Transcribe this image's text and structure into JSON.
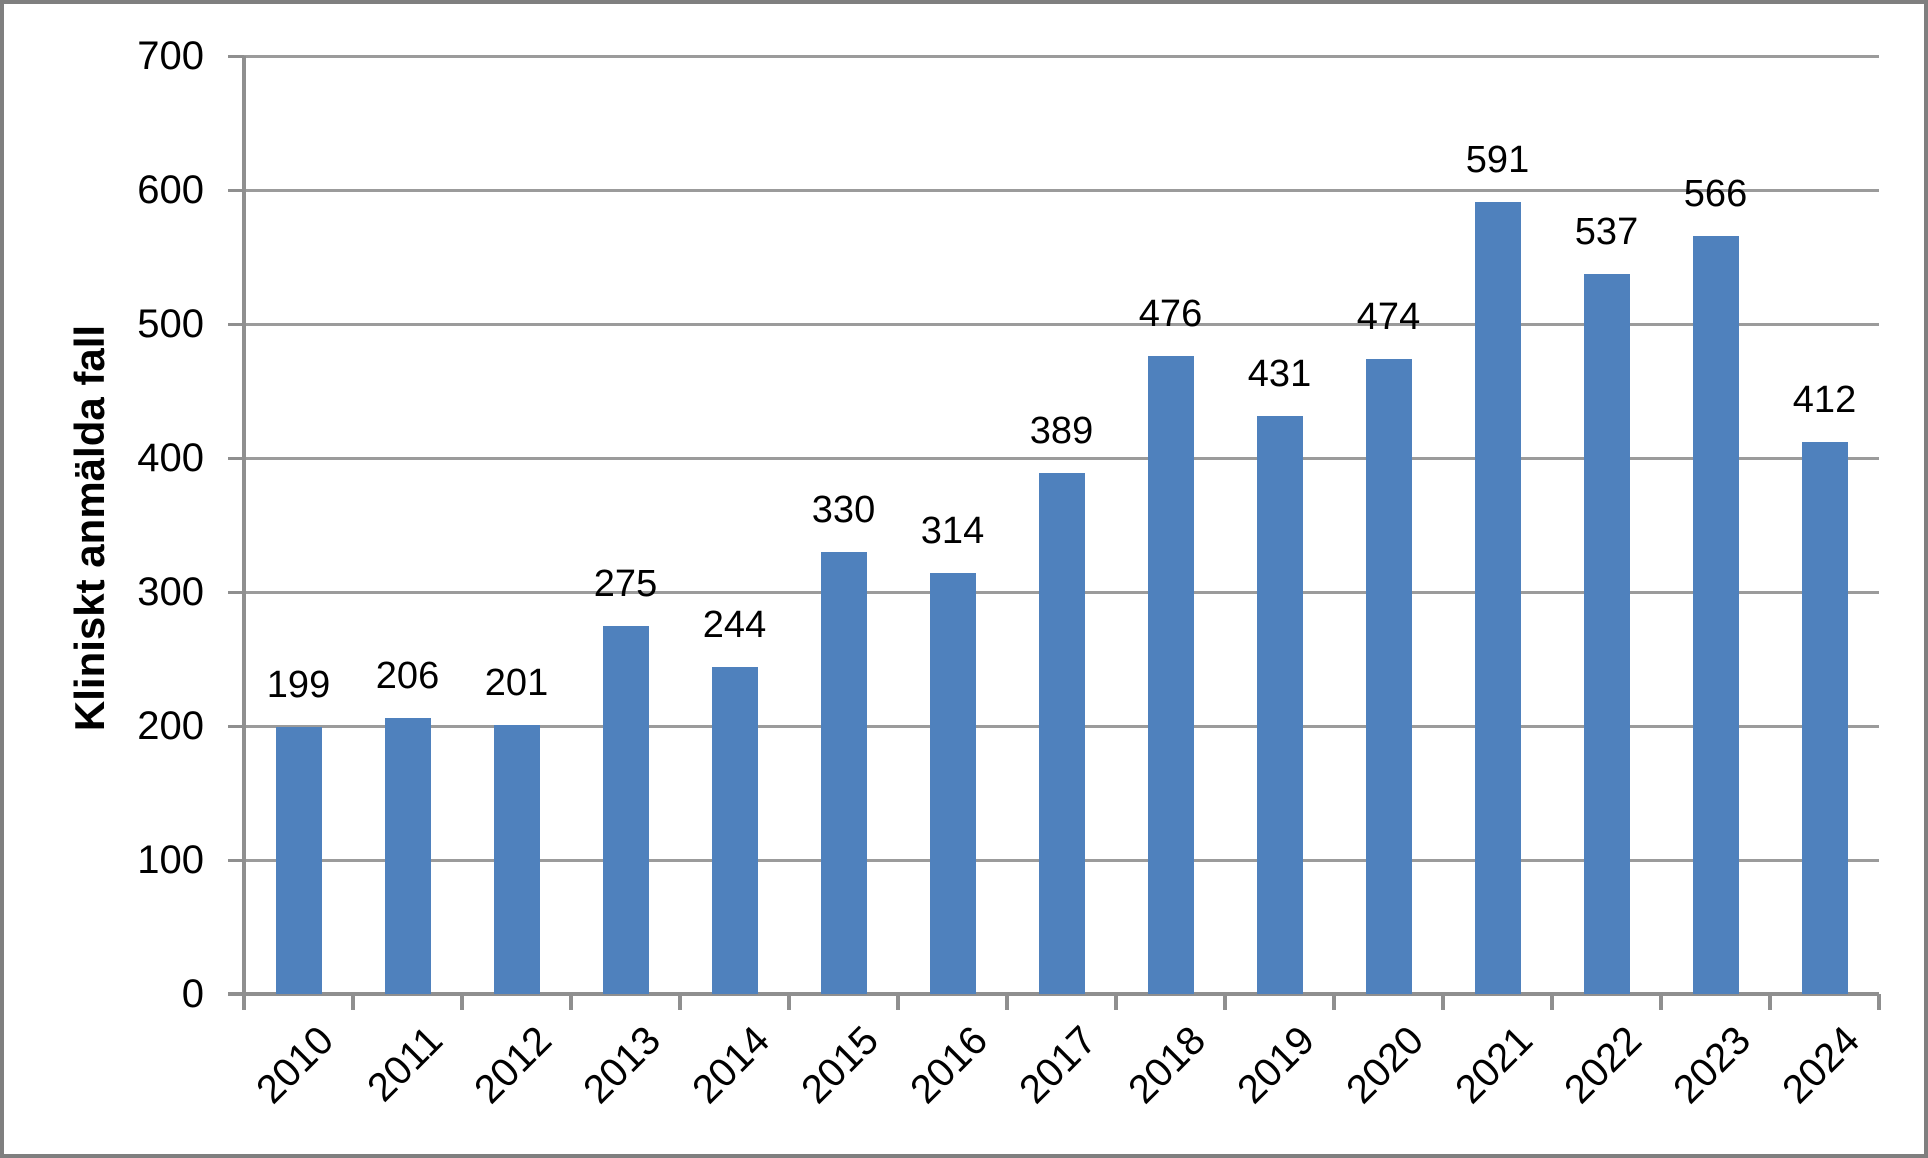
{
  "chart_data": {
    "type": "bar",
    "title": "",
    "categories": [
      "2010",
      "2011",
      "2012",
      "2013",
      "2014",
      "2015",
      "2016",
      "2017",
      "2018",
      "2019",
      "2020",
      "2021",
      "2022",
      "2023",
      "2024"
    ],
    "values": [
      199,
      206,
      201,
      275,
      244,
      330,
      314,
      389,
      476,
      431,
      474,
      591,
      537,
      566,
      412
    ],
    "xlabel": "",
    "ylabel": "Kliniskt anmälda fall",
    "ylim": [
      0,
      700
    ],
    "yticks": [
      0,
      100,
      200,
      300,
      400,
      500,
      600,
      700
    ],
    "grid": true,
    "legend": false,
    "data_labels": true,
    "x_label_rotation_deg": 45,
    "colors": {
      "bar": "#4F81BD",
      "gridline": "#9B9B9B",
      "axis": "#8F8F8F",
      "tick": "#8F8F8F",
      "frame_border": "#7F7F7F",
      "text": "#000000",
      "background": "#FFFFFF"
    }
  }
}
